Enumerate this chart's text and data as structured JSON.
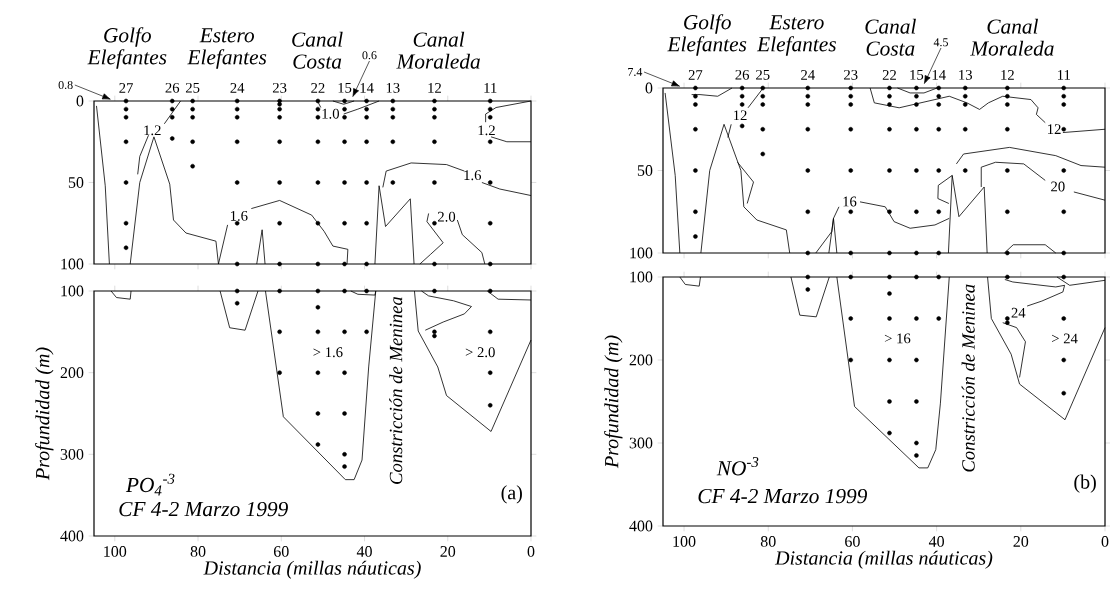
{
  "chart_data": [
    {
      "type": "line",
      "xlim": [
        105,
        0
      ],
      "ylim": [
        100,
        0
      ],
      "yticks": [
        0,
        50,
        100
      ],
      "xticks": [
        100,
        80,
        60,
        40,
        20,
        0
      ],
      "tick_labels": "y",
      "series": [
        {
          "type": "scatter",
          "color": "#000000",
          "x": [
            97.3,
            97.3,
            97.3,
            97.3,
            97.3,
            97.3,
            97.3,
            86.2,
            86.2,
            86.2,
            86.2,
            81.3,
            81.3,
            81.3,
            81.3,
            81.3,
            70.6,
            70.6,
            70.6,
            70.6,
            70.6,
            70.6,
            70.6,
            60.4,
            60.4,
            60.4,
            60.4,
            60.4,
            60.4,
            60.4,
            60.4,
            51.2,
            51.2,
            51.2,
            51.2,
            51.2,
            51.2,
            51.2,
            44.8,
            44.8,
            44.8,
            44.8,
            44.8,
            44.8,
            44.8,
            39.5,
            39.5,
            39.5,
            39.5,
            39.5,
            39.5,
            39.5,
            33.2,
            33.2,
            33.2,
            33.2,
            33.2,
            23.2,
            23.2,
            23.2,
            23.2,
            23.2,
            23.2,
            23.2,
            9.8,
            9.8,
            9.8,
            9.8,
            9.8,
            9.8,
            9.8
          ],
          "values": [
            0,
            5,
            10,
            25,
            50,
            75,
            90,
            0,
            5,
            10,
            23,
            0,
            5,
            10,
            25,
            40,
            0,
            5,
            10,
            25,
            50,
            75,
            100,
            0,
            2,
            5,
            10,
            25,
            50,
            75,
            100,
            0,
            5,
            10,
            25,
            50,
            75,
            100,
            0,
            5,
            10,
            25,
            50,
            75,
            100,
            0,
            5,
            10,
            25,
            50,
            75,
            100,
            0,
            5,
            10,
            25,
            50,
            0,
            5,
            10,
            25,
            50,
            75,
            100,
            0,
            5,
            10,
            25,
            50,
            75,
            100
          ]
        },
        {
          "type": "line",
          "color": "#000000",
          "x": [
            104.4,
            102.3,
            101.3
          ],
          "values": [
            3,
            52,
            100
          ]
        },
        {
          "type": "line",
          "color": "#000000",
          "x": [
            96.3,
            94.0,
            90.6,
            86.8,
            85.9,
            82.9,
            75.7,
            75.1
          ],
          "values": [
            100,
            50,
            22,
            51,
            73,
            81,
            86,
            100
          ]
        },
        {
          "type": "line",
          "color": "#000000",
          "x": [
            94.5,
            94.0,
            91.9,
            90,
            88.1,
            84.2
          ],
          "values": [
            45,
            34,
            21,
            null,
            14,
            0
          ]
        },
        {
          "type": "line",
          "color": "#000000",
          "x": [
            75.1,
            72.9,
            70,
            67.2,
            60.4,
            52.7,
            49.7,
            47.6,
            44.0,
            44.2
          ],
          "values": [
            100,
            76,
            null,
            66,
            61,
            70,
            80,
            89,
            91,
            100
          ]
        },
        {
          "type": "line",
          "color": "#000000",
          "x": [
            65.9,
            64.6,
            63.9
          ],
          "values": [
            100,
            79,
            100
          ]
        },
        {
          "type": "line",
          "color": "#000000",
          "x": [
            51.3,
            50.5,
            48,
            45.0,
            41.6,
            36.5
          ],
          "values": [
            0,
            4,
            null,
            8,
            5,
            0
          ]
        },
        {
          "type": "line",
          "color": "#000000",
          "x": [
            47.6,
            45,
            42.5
          ],
          "values": [
            0,
            2,
            0
          ]
        },
        {
          "type": "line",
          "color": "#000000",
          "x": [
            35.6,
            34.8,
            28.8,
            20.3,
            16,
            14,
            11.8,
            7.5,
            0
          ],
          "values": [
            53,
            43,
            38,
            39,
            43,
            null,
            50,
            54,
            58
          ]
        },
        {
          "type": "line",
          "color": "#000000",
          "x": [
            37.5,
            36.5,
            34.95,
            29,
            28.1
          ],
          "values": [
            100,
            52,
            77,
            60,
            100
          ]
        },
        {
          "type": "line",
          "color": "#000000",
          "x": [
            26.7,
            24.1,
            21.1,
            25,
            24.6,
            21,
            17.7,
            16.5,
            11.8,
            11.1
          ],
          "values": [
            100,
            94,
            87,
            74,
            69,
            null,
            73,
            82,
            93,
            100
          ]
        },
        {
          "type": "line",
          "color": "#000000",
          "x": [
            0,
            8.4,
            10.9,
            10.9,
            10.5,
            9.6,
            5.8,
            0
          ],
          "values": [
            0,
            4,
            8,
            13,
            null,
            22,
            25,
            25
          ]
        }
      ],
      "annotations": [
        "Golfo Elefantes",
        "Estero Elefantes",
        "Canal Costa",
        "Canal Moraleda",
        "0.8",
        "0.6",
        "1.2",
        "1.0",
        "1.6",
        "1.6",
        "2.0",
        "1.2",
        {
          "text": "27",
          "x": 97.3,
          "y": 0
        },
        {
          "text": "26",
          "x": 86.2,
          "y": 0
        },
        {
          "text": "25",
          "x": 81.3,
          "y": 0
        },
        {
          "text": "24",
          "x": 70.6,
          "y": 0
        },
        {
          "text": "23",
          "x": 60.4,
          "y": 0
        },
        {
          "text": "22",
          "x": 51.2,
          "y": 0
        },
        {
          "text": "15",
          "x": 44.8,
          "y": 0
        },
        {
          "text": "14",
          "x": 39.5,
          "y": 0
        },
        {
          "text": "13",
          "x": 33.2,
          "y": 0
        },
        {
          "text": "12",
          "x": 23.2,
          "y": 0
        },
        {
          "text": "11",
          "x": 9.8,
          "y": 0
        }
      ]
    },
    {
      "type": "line",
      "xlim": [
        105,
        0
      ],
      "ylim": [
        400,
        100
      ],
      "yticks": [
        100,
        200,
        300,
        400
      ],
      "xticks": [
        100,
        80,
        60,
        40,
        20,
        0
      ],
      "xlabel": "Distancia (millas náuticas)",
      "ylabel": "Profundidad (m)",
      "series": [
        {
          "type": "scatter",
          "color": "#000000",
          "x": [
            70.6,
            70.6,
            60.4,
            60.4,
            60.4,
            51.2,
            51.2,
            51.2,
            51.2,
            51.2,
            51.2,
            44.8,
            44.8,
            44.8,
            44.8,
            44.8,
            44.8,
            39.5,
            39.5,
            23.2,
            23.2,
            23.2,
            9.8,
            9.8,
            9.8,
            9.8
          ],
          "values": [
            100,
            115,
            100,
            150,
            200,
            100,
            120,
            150,
            200,
            250,
            288,
            100,
            150,
            200,
            250,
            300,
            315,
            100,
            150,
            100,
            150,
            155,
            100,
            150,
            200,
            240
          ]
        },
        {
          "type": "line",
          "color": "#000000",
          "x": [
            100.9,
            99.6,
            96.3,
            96.1
          ],
          "values": [
            100,
            108,
            110,
            100
          ]
        },
        {
          "type": "line",
          "color": "#000000",
          "x": [
            74.7,
            72.4,
            68.7,
            65.6
          ],
          "values": [
            100,
            145,
            148,
            100
          ]
        },
        {
          "type": "line",
          "color": "#000000",
          "x": [
            63.8,
            59.5,
            44.6,
            42.5,
            40.6,
            39.0,
            37.3
          ],
          "values": [
            100,
            254,
            331,
            331,
            307,
            193,
            100
          ]
        },
        {
          "type": "line",
          "color": "#000000",
          "x": [
            43.3,
            41.6,
            37.5,
            37.3
          ],
          "values": [
            100,
            104,
            105,
            100
          ]
        },
        {
          "type": "line",
          "color": "#000000",
          "x": [
            28,
            27.1,
            22.4,
            20.3,
            9.6,
            0
          ],
          "values": [
            100,
            149,
            193,
            228,
            272,
            160
          ]
        },
        {
          "type": "line",
          "color": "#000000",
          "x": [
            26.3,
            24.6,
            18.6,
            14.3,
            16,
            21.1,
            25.4
          ],
          "values": [
            100,
            106,
            112,
            119,
            128,
            138,
            148
          ]
        },
        {
          "type": "line",
          "color": "#000000",
          "x": [
            10.5,
            7.9,
            0
          ],
          "values": [
            100,
            110,
            111
          ]
        }
      ],
      "annotations": [
        "> 1.6",
        "> 2.0",
        "Constricción de Meninea",
        "PO$_{4}$$^{-3}$",
        "CF 4-2 Marzo 1999",
        "(a)"
      ]
    },
    {
      "type": "line",
      "xlim": [
        105,
        0
      ],
      "ylim": [
        100,
        0
      ],
      "yticks": [
        0,
        50,
        100
      ],
      "xticks": [
        100,
        80,
        60,
        40,
        20,
        0
      ],
      "tick_labels": "y",
      "series": [
        {
          "type": "scatter",
          "color": "#000000",
          "x": [
            97.3,
            97.3,
            97.3,
            97.3,
            97.3,
            97.3,
            97.3,
            86.2,
            86.2,
            86.2,
            86.2,
            81.3,
            81.3,
            81.3,
            81.3,
            81.3,
            70.6,
            70.6,
            70.6,
            70.6,
            70.6,
            70.6,
            70.6,
            60.4,
            60.4,
            60.4,
            60.4,
            60.4,
            60.4,
            60.4,
            51.2,
            51.2,
            51.2,
            51.2,
            51.2,
            51.2,
            51.2,
            44.8,
            44.8,
            44.8,
            44.8,
            44.8,
            44.8,
            44.8,
            39.5,
            39.5,
            39.5,
            39.5,
            39.5,
            39.5,
            39.5,
            33.2,
            33.2,
            33.2,
            33.2,
            33.2,
            23.2,
            23.2,
            23.2,
            23.2,
            23.2,
            23.2,
            23.2,
            9.8,
            9.8,
            9.8,
            9.8,
            9.8,
            9.8,
            9.8
          ],
          "values": [
            0,
            5,
            10,
            25,
            50,
            75,
            90,
            0,
            5,
            10,
            23,
            0,
            5,
            10,
            25,
            40,
            0,
            5,
            10,
            25,
            50,
            75,
            100,
            0,
            5,
            10,
            25,
            50,
            75,
            100,
            0,
            5,
            10,
            25,
            50,
            75,
            100,
            0,
            5,
            10,
            25,
            50,
            75,
            100,
            0,
            5,
            10,
            25,
            50,
            75,
            100,
            0,
            5,
            10,
            25,
            50,
            0,
            5,
            10,
            25,
            50,
            75,
            100,
            0,
            5,
            10,
            25,
            50,
            75,
            100
          ]
        },
        {
          "type": "line",
          "color": "#000000",
          "x": [
            104.5,
            102.1,
            101
          ],
          "values": [
            3,
            53,
            100
          ]
        },
        {
          "type": "line",
          "color": "#000000",
          "x": [
            96,
            93.9,
            90.5,
            86.5,
            85.8,
            82.7,
            75.7,
            74.9
          ],
          "values": [
            100,
            50,
            22,
            50,
            72,
            80,
            86,
            100
          ]
        },
        {
          "type": "line",
          "color": "#000000",
          "x": [
            98.2,
            96.2,
            92,
            88.6
          ],
          "values": [
            4,
            4,
            5,
            0
          ]
        },
        {
          "type": "line",
          "color": "#000000",
          "x": [
            89.6,
            88.8,
            86.8,
            84.8,
            81.2
          ],
          "values": [
            30,
            22,
            null,
            12,
            0
          ]
        },
        {
          "type": "line",
          "color": "#000000",
          "x": [
            87.3,
            83.5,
            85
          ],
          "values": [
            45,
            57,
            70
          ]
        },
        {
          "type": "line",
          "color": "#000000",
          "x": [
            68.7,
            64.9,
            64.5,
            63.2,
            60.7,
            58.2,
            52.2,
            50.1,
            46.3,
            40.4,
            37
          ],
          "values": [
            100,
            87,
            79,
            72,
            null,
            69,
            72,
            81,
            85,
            83,
            79
          ]
        },
        {
          "type": "line",
          "color": "#000000",
          "x": [
            65.6,
            64.5,
            63.7
          ],
          "values": [
            100,
            79,
            100
          ]
        },
        {
          "type": "line",
          "color": "#000000",
          "x": [
            37.2,
            36.3,
            34.7,
            28.7,
            28
          ],
          "values": [
            100,
            53,
            78,
            60,
            100
          ]
        },
        {
          "type": "line",
          "color": "#000000",
          "x": [
            36.3,
            39.6,
            39.7,
            37.1
          ],
          "values": [
            53,
            59,
            67,
            70
          ]
        },
        {
          "type": "line",
          "color": "#000000",
          "x": [
            35.3,
            33.6,
            22.7,
            11.7,
            5.7,
            0
          ],
          "values": [
            46,
            40,
            36,
            41,
            47,
            48
          ]
        },
        {
          "type": "line",
          "color": "#000000",
          "x": [
            29.4,
            29.4,
            26,
            19.3,
            14.2,
            11,
            7.4,
            0
          ],
          "values": [
            60,
            48,
            45,
            46,
            56,
            null,
            63,
            68
          ]
        },
        {
          "type": "line",
          "color": "#000000",
          "x": [
            23.9,
            21.8,
            14.2,
            11.7
          ],
          "values": [
            100,
            95,
            95,
            100
          ]
        },
        {
          "type": "line",
          "color": "#000000",
          "x": [
            49.3,
            46.3,
            43,
            39.9
          ],
          "values": [
            0,
            3,
            3,
            0
          ]
        },
        {
          "type": "line",
          "color": "#000000",
          "x": [
            55.8,
            54.8,
            48.9,
            40.4,
            37,
            32.8,
            29.8,
            27.7,
            24.3,
            17.6,
            15.9,
            16.3,
            14.2,
            12,
            10,
            0
          ],
          "values": [
            0,
            9,
            12,
            7,
            5,
            9,
            13,
            9,
            5,
            7,
            12,
            16,
            21,
            null,
            27,
            25
          ]
        }
      ],
      "annotations": [
        "Golfo Elefantes",
        "Estero Elefantes",
        "Canal Costa",
        "Canal Moraleda",
        "7.4",
        "4.5",
        "12",
        "16",
        "20",
        "12",
        {
          "text": "27",
          "x": 97.3,
          "y": 0
        },
        {
          "text": "26",
          "x": 86.2,
          "y": 0
        },
        {
          "text": "25",
          "x": 81.3,
          "y": 0
        },
        {
          "text": "24",
          "x": 70.6,
          "y": 0
        },
        {
          "text": "23",
          "x": 60.4,
          "y": 0
        },
        {
          "text": "22",
          "x": 51.2,
          "y": 0
        },
        {
          "text": "15",
          "x": 44.8,
          "y": 0
        },
        {
          "text": "14",
          "x": 39.5,
          "y": 0
        },
        {
          "text": "13",
          "x": 33.2,
          "y": 0
        },
        {
          "text": "12",
          "x": 23.2,
          "y": 0
        },
        {
          "text": "11",
          "x": 9.8,
          "y": 0
        }
      ]
    },
    {
      "type": "line",
      "xlim": [
        105,
        0
      ],
      "ylim": [
        400,
        100
      ],
      "yticks": [
        100,
        200,
        300,
        400
      ],
      "xticks": [
        100,
        80,
        60,
        40,
        20,
        0
      ],
      "xlabel": "Distancia (millas náuticas)",
      "ylabel": "Profundidad (m)",
      "series": [
        {
          "type": "scatter",
          "color": "#000000",
          "x": [
            70.6,
            70.6,
            60.4,
            60.4,
            60.4,
            51.2,
            51.2,
            51.2,
            51.2,
            51.2,
            51.2,
            44.8,
            44.8,
            44.8,
            44.8,
            44.8,
            44.8,
            39.5,
            39.5,
            23.2,
            23.2,
            23.2,
            9.8,
            9.8,
            9.8,
            9.8
          ],
          "values": [
            100,
            115,
            100,
            150,
            200,
            100,
            120,
            150,
            200,
            250,
            288,
            100,
            150,
            200,
            250,
            300,
            315,
            100,
            150,
            100,
            150,
            155,
            100,
            150,
            200,
            240
          ]
        },
        {
          "type": "line",
          "color": "#000000",
          "x": [
            101,
            99.7,
            96.4,
            96.1
          ],
          "values": [
            100,
            109,
            111,
            100
          ]
        },
        {
          "type": "line",
          "color": "#000000",
          "x": [
            74.6,
            72.5,
            68.6,
            65.5
          ],
          "values": [
            100,
            146,
            148,
            100
          ]
        },
        {
          "type": "line",
          "color": "#000000",
          "x": [
            63.7,
            59.5,
            44.2,
            42.1,
            40.2,
            39.1,
            37
          ],
          "values": [
            100,
            256,
            330,
            330,
            308,
            252,
            100
          ]
        },
        {
          "type": "line",
          "color": "#000000",
          "x": [
            27.9,
            27,
            22.3,
            20.3,
            9.5,
            0
          ],
          "values": [
            100,
            150,
            193,
            229,
            272,
            161
          ]
        },
        {
          "type": "line",
          "color": "#000000",
          "x": [
            23.8,
            21.9,
            11.7,
            9.6,
            10,
            15,
            18.5,
            21,
            24.3,
            21,
            18.9,
            20.3
          ],
          "values": [
            103,
            106,
            112,
            110,
            118,
            129,
            135,
            null,
            155,
            161,
            178,
            221
          ]
        },
        {
          "type": "line",
          "color": "#000000",
          "x": [
            11.4,
            8.4,
            0
          ],
          "values": [
            100,
            110,
            104
          ]
        }
      ],
      "annotations": [
        "> 16",
        "> 24",
        "24",
        "Constricción de Meninea",
        "NO$^{-3}$",
        "CF 4-2 Marzo 1999",
        "(b)"
      ]
    }
  ]
}
